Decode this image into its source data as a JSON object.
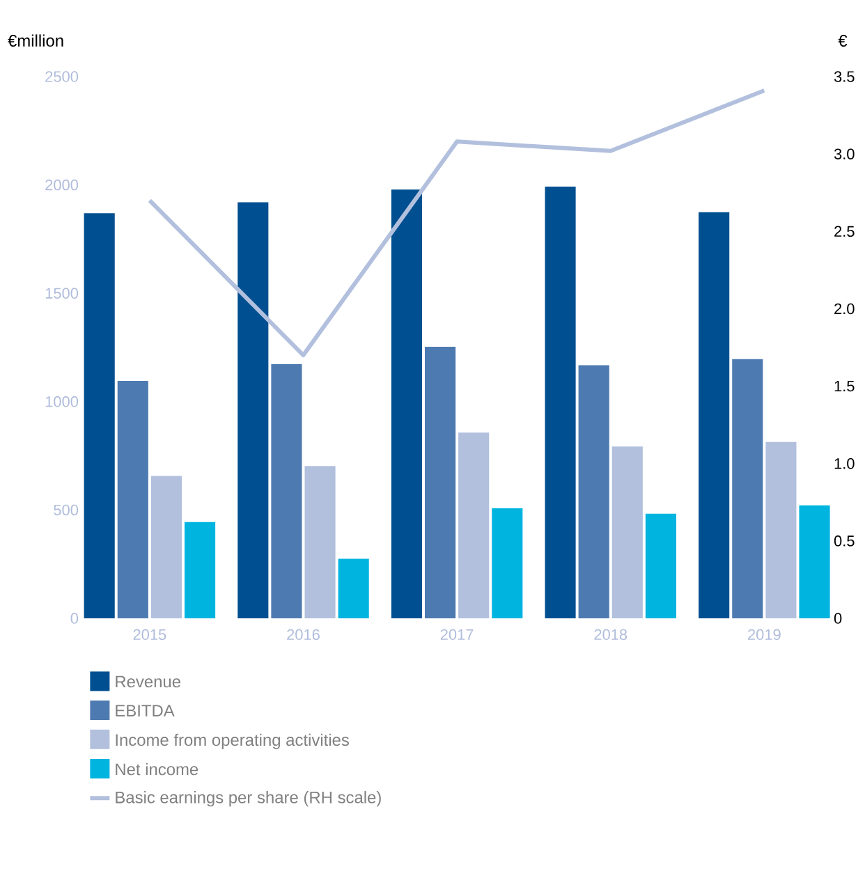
{
  "chart_data": {
    "type": "bar",
    "categories": [
      "2015",
      "2016",
      "2017",
      "2018",
      "2019"
    ],
    "ylabel": "€million",
    "y2label": "€",
    "ylim": [
      0,
      2500
    ],
    "yticks": [
      0,
      500,
      1000,
      1500,
      2000,
      2500
    ],
    "y2lim": [
      0,
      3.5
    ],
    "y2ticks": [
      0,
      0.5,
      {
        "value": 1,
        "label": "1.0"
      },
      1.5,
      {
        "value": 2,
        "label": "2.0"
      },
      2.5,
      {
        "value": 3,
        "label": "3.0"
      },
      3.5
    ],
    "legend": "bottom",
    "series": [
      {
        "name": "Revenue",
        "color": "#004f90",
        "values": [
          1869,
          1920,
          1979,
          1992,
          1874
        ]
      },
      {
        "name": "EBITDA",
        "color": "#4d7ab0",
        "values": [
          1096,
          1173,
          1253,
          1168,
          1196
        ]
      },
      {
        "name": "Income from operating activities",
        "color": "#b2c0de",
        "values": [
          657,
          703,
          857,
          793,
          814
        ]
      },
      {
        "name": "Net income",
        "color": "#00b4e0",
        "values": [
          444,
          275,
          508,
          483,
          521
        ]
      },
      {
        "name": "Basic earnings per share (RH scale)",
        "type": "line",
        "axis": "y2",
        "color": "#b2c0de",
        "values": [
          2.7,
          1.7,
          3.08,
          3.02,
          3.41
        ]
      }
    ]
  }
}
